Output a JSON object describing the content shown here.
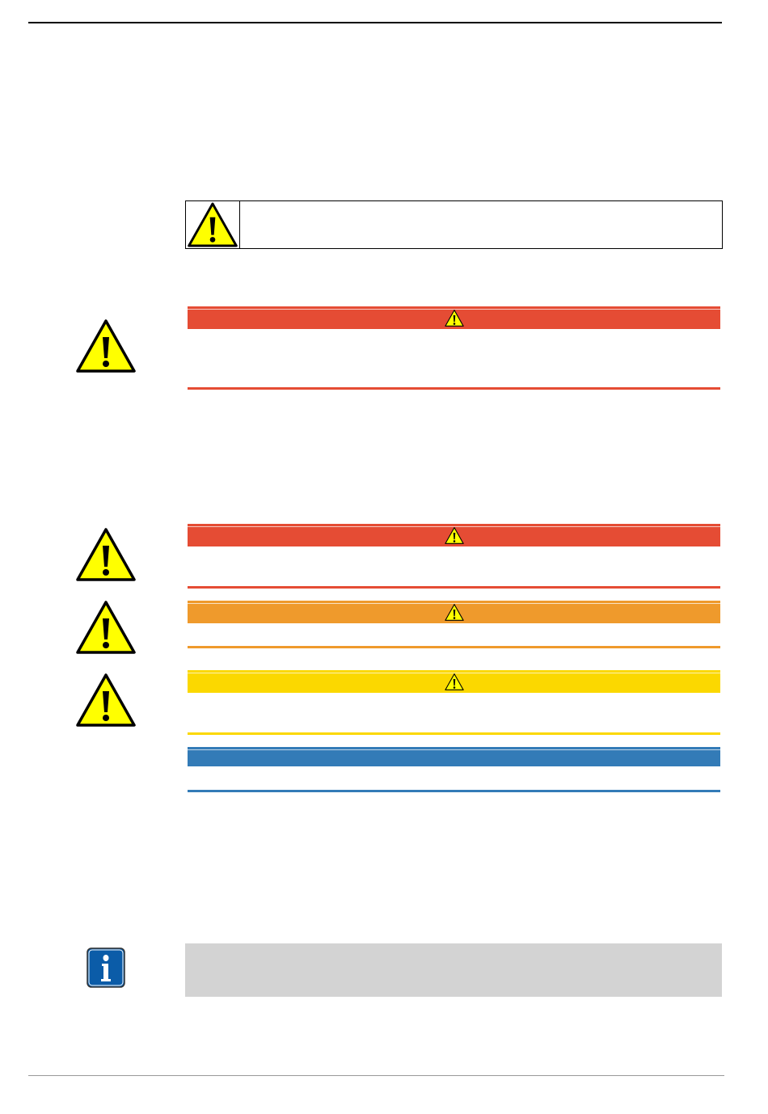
{
  "colors": {
    "danger": "#e54c34",
    "warning": "#ef9a2c",
    "caution": "#fbd800",
    "notice": "#337bb7",
    "info_box": "#d3d3d3",
    "symbol_yellow": "#ffff00",
    "info_icon": "#0b5ca8"
  },
  "icons": {
    "warning": "warning-triangle-icon",
    "info": "info-icon"
  },
  "notices": [
    {
      "level": "danger"
    },
    {
      "level": "danger"
    },
    {
      "level": "warning"
    },
    {
      "level": "caution"
    },
    {
      "level": "notice"
    }
  ]
}
